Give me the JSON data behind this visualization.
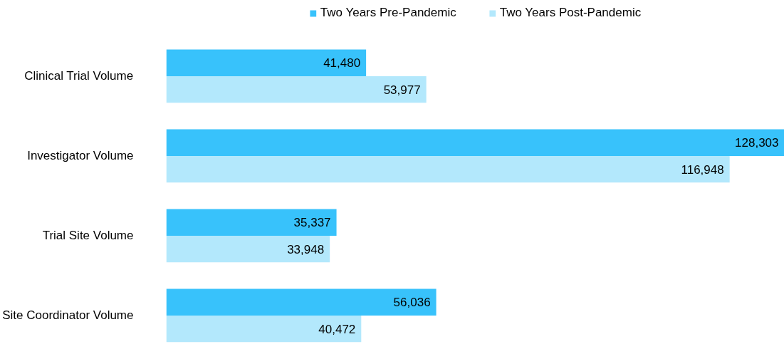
{
  "chart_data": {
    "type": "bar",
    "orientation": "horizontal",
    "categories": [
      "Clinical Trial Volume",
      "Investigator Volume",
      "Trial Site Volume",
      "Site Coordinator Volume"
    ],
    "series": [
      {
        "name": "Two Years Pre-Pandemic",
        "color": "#38c2fb",
        "values": [
          41480,
          128303,
          35337,
          56036
        ],
        "value_labels": [
          "41,480",
          "128,303",
          "35,337",
          "56,036"
        ]
      },
      {
        "name": "Two Years Post-Pandemic",
        "color": "#b3e8fc",
        "values": [
          53977,
          116948,
          33948,
          40472
        ],
        "value_labels": [
          "53,977",
          "116,948",
          "33,948",
          "40,472"
        ]
      }
    ],
    "legend": "top",
    "grid": false,
    "tick_labels": "y"
  }
}
